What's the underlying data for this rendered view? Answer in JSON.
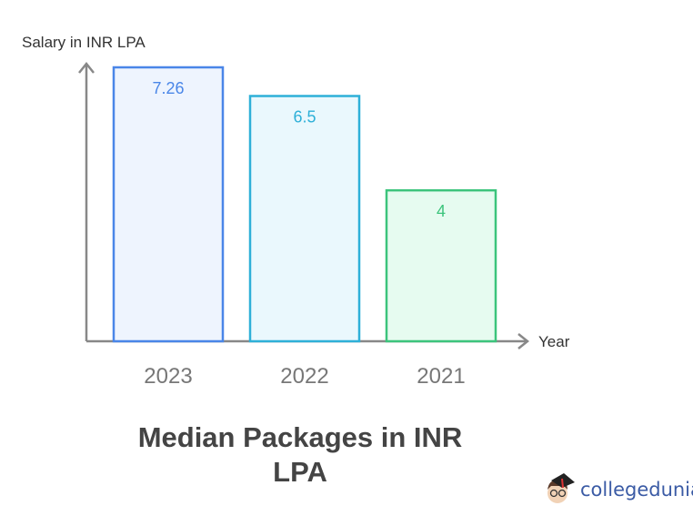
{
  "chart_data": {
    "type": "bar",
    "title": "Median Packages in INR LPA",
    "xlabel": "Year",
    "ylabel": "Salary in INR LPA",
    "categories": [
      "2023",
      "2022",
      "2021"
    ],
    "values": [
      7.26,
      6.5,
      4
    ],
    "value_labels": [
      "7.26",
      "6.5",
      "4"
    ],
    "colors": [
      {
        "stroke": "#4a86e8",
        "fill": "#eef4fe"
      },
      {
        "stroke": "#2eb0d8",
        "fill": "#eaf8fd"
      },
      {
        "stroke": "#3cc47c",
        "fill": "#e6fbf0"
      }
    ],
    "ylim": [
      0,
      7.26
    ],
    "grid": false,
    "legend": "none"
  },
  "logo": {
    "text": "collegedunia"
  }
}
